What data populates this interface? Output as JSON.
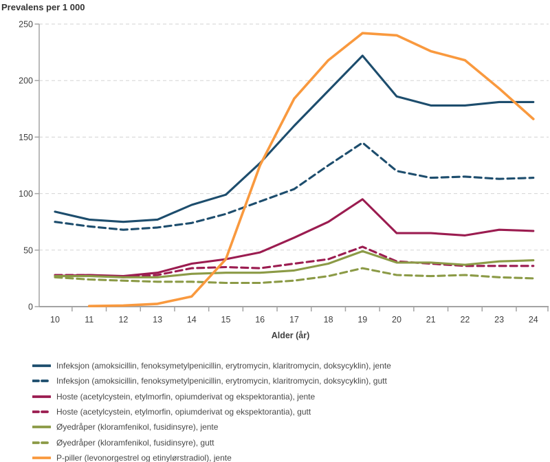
{
  "page": {
    "title": "Prevalens per 1 000",
    "xlabel": "Alder (år)"
  },
  "chart_data": {
    "type": "line",
    "title": "Prevalens per 1 000",
    "xlabel": "Alder (år)",
    "ylabel": "Prevalens per 1 000",
    "x": [
      10,
      11,
      12,
      13,
      14,
      15,
      16,
      17,
      18,
      19,
      20,
      21,
      22,
      23,
      24
    ],
    "ylim": [
      0,
      250
    ],
    "yticks": [
      0,
      50,
      100,
      150,
      200,
      250
    ],
    "grid": "horizontal-dashed",
    "legend_position": "below-left",
    "axis_color": "#a3a3a3",
    "grid_color": "#d3d3d3",
    "series": [
      {
        "name": "infeksjon-jente",
        "label": "Infeksjon (amoksicillin, fenoksymetylpenicillin, erytromycin, klaritromycin, doksycyklin), jente",
        "color": "#1d4d6d",
        "dash": "solid",
        "values": [
          84,
          77,
          75,
          77,
          90,
          99,
          127,
          160,
          191,
          222,
          186,
          178,
          178,
          181,
          181
        ]
      },
      {
        "name": "infeksjon-gutt",
        "label": "Infeksjon (amoksicillin, fenoksymetylpenicillin, erytromycin, klaritromycin, doksycyklin), gutt",
        "color": "#1d4d6d",
        "dash": "dashed",
        "values": [
          75,
          71,
          68,
          70,
          74,
          82,
          93,
          104,
          125,
          145,
          120,
          114,
          115,
          113,
          114
        ]
      },
      {
        "name": "hoste-jente",
        "label": "Hoste (acetylcystein, etylmorfin, opiumderivat og ekspektorantia), jente",
        "color": "#9b1c50",
        "dash": "solid",
        "values": [
          27,
          28,
          27,
          30,
          38,
          42,
          48,
          61,
          75,
          95,
          65,
          65,
          63,
          68,
          67
        ]
      },
      {
        "name": "hoste-gutt",
        "label": "Hoste (acetylcystein, etylmorfin, opiumderivat og ekspektorantia), gutt",
        "color": "#9b1c50",
        "dash": "dashed",
        "values": [
          28,
          28,
          26,
          28,
          34,
          35,
          34,
          38,
          42,
          53,
          40,
          38,
          36,
          36,
          36
        ]
      },
      {
        "name": "oyedraper-jente",
        "label": "Øyedråper (kloramfenikol, fusidinsyre), jente",
        "color": "#8b9a46",
        "dash": "solid",
        "values": [
          27,
          27,
          26,
          26,
          29,
          30,
          30,
          32,
          38,
          49,
          39,
          39,
          37,
          40,
          41
        ]
      },
      {
        "name": "oyedraper-gutt",
        "label": "Øyedråper (kloramfenikol, fusidinsyre), gutt",
        "color": "#8b9a46",
        "dash": "dashed",
        "values": [
          26,
          24,
          23,
          22,
          22,
          21,
          21,
          23,
          27,
          34,
          28,
          27,
          28,
          26,
          25
        ]
      },
      {
        "name": "p-piller-jente",
        "label": "P-piller (levonorgestrel og etinylørstradiol), jente",
        "color": "#f9993e",
        "dash": "solid",
        "values": [
          null,
          0.5,
          1,
          2.5,
          9,
          42,
          125,
          184,
          218,
          242,
          240,
          226,
          218,
          193,
          166
        ]
      }
    ]
  }
}
